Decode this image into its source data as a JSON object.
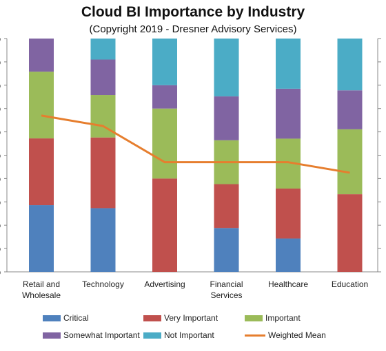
{
  "chart_data": {
    "type": "bar",
    "stacked": true,
    "title": "Cloud BI Importance by Industry",
    "subtitle": "(Copyright 2019 - Dresner Advisory Services)",
    "categories": [
      "Retail and\nWholesale",
      "Technology",
      "Advertising",
      "Financial\nServices",
      "Healthcare",
      "Education"
    ],
    "ylim": [
      0,
      100
    ],
    "y_ticks": [
      "%",
      "%",
      "%",
      "%",
      "%",
      "%",
      "%",
      "%",
      "%",
      "%",
      "%"
    ],
    "series": [
      {
        "name": "Critical",
        "color": "#4F81BD",
        "values": [
          28.6,
          27.3,
          0,
          18.8,
          14.3,
          0
        ]
      },
      {
        "name": "Very Important",
        "color": "#C0504D",
        "values": [
          28.6,
          30.3,
          40,
          18.8,
          21.4,
          33.3
        ]
      },
      {
        "name": "Important",
        "color": "#9BBB59",
        "values": [
          28.6,
          18.2,
          30,
          18.8,
          21.4,
          27.8
        ]
      },
      {
        "name": "Somewhat Important",
        "color": "#8064A2",
        "values": [
          14.2,
          15.2,
          10,
          18.8,
          21.4,
          16.7
        ]
      },
      {
        "name": "Not Important",
        "color": "#4BACC6",
        "values": [
          0,
          9,
          20,
          24.8,
          21.5,
          22.2
        ]
      }
    ],
    "line": {
      "name": "Weighted Mean",
      "color": "#E67E2E",
      "values": [
        67,
        62.5,
        47,
        47,
        47,
        42.5
      ]
    },
    "legend_position": "bottom",
    "grid": false
  }
}
